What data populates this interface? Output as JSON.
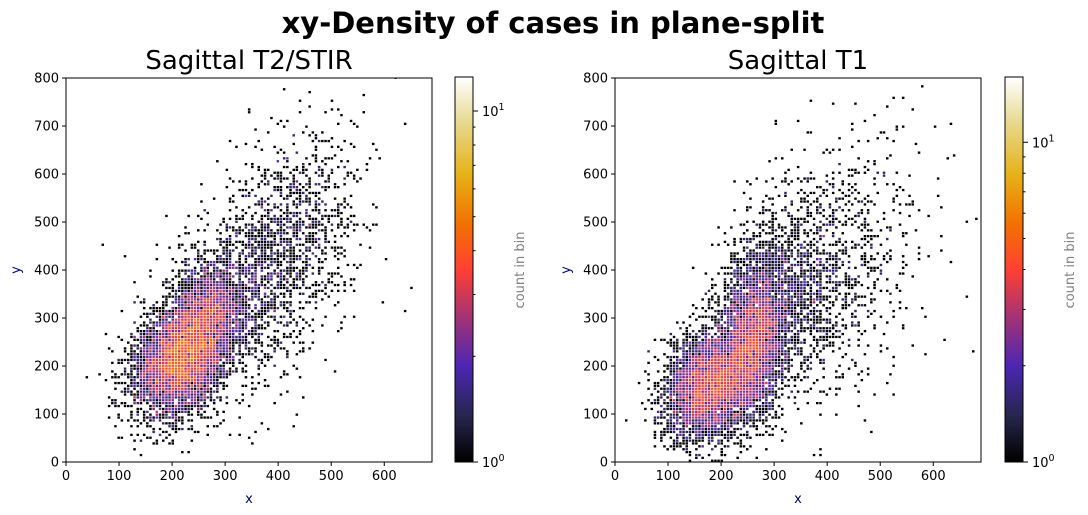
{
  "figure": {
    "suptitle": "xy-Density of cases in plane-split"
  },
  "colors": {
    "axis_label": "#00008b",
    "colorbar_label": "#808080",
    "colormap": "CMRmap"
  },
  "chart_data": [
    {
      "type": "heatmap",
      "subtype": "hexbin",
      "title": "Sagittal T2/STIR",
      "xlabel": "x",
      "ylabel": "y",
      "xlim": [
        0,
        690
      ],
      "ylim": [
        0,
        800
      ],
      "xticks": [
        0,
        100,
        200,
        300,
        400,
        500,
        600
      ],
      "yticks": [
        0,
        100,
        200,
        300,
        400,
        500,
        600,
        700,
        800
      ],
      "colorbar": {
        "label": "count in bin",
        "scale": "log",
        "range": [
          1,
          12.5
        ],
        "tick_labels": [
          "10^0",
          "10^1"
        ]
      },
      "clusters": [
        {
          "cx": 215,
          "cy": 210,
          "sx": 45,
          "sy": 55,
          "n": 4200,
          "peak": 6
        },
        {
          "cx": 265,
          "cy": 310,
          "sx": 38,
          "sy": 55,
          "n": 1800,
          "peak": 5
        },
        {
          "cx": 360,
          "cy": 370,
          "sx": 70,
          "sy": 110,
          "n": 1200,
          "peak": 1.5
        },
        {
          "cx": 440,
          "cy": 500,
          "sx": 65,
          "sy": 95,
          "n": 650,
          "peak": 1.2
        }
      ],
      "outliers": [
        [
          40,
          178
        ],
        [
          70,
          455
        ],
        [
          620,
          800
        ],
        [
          640,
          705
        ],
        [
          650,
          365
        ],
        [
          640,
          312
        ],
        [
          690,
          240
        ],
        [
          560,
          765
        ],
        [
          500,
          755
        ],
        [
          540,
          355
        ]
      ]
    },
    {
      "type": "heatmap",
      "subtype": "hexbin",
      "title": "Sagittal T1",
      "xlabel": "x",
      "ylabel": "y",
      "xlim": [
        0,
        690
      ],
      "ylim": [
        0,
        800
      ],
      "xticks": [
        0,
        100,
        200,
        300,
        400,
        500,
        600
      ],
      "yticks": [
        0,
        100,
        200,
        300,
        400,
        500,
        600,
        700,
        800
      ],
      "colorbar": {
        "label": "count in bin",
        "scale": "log",
        "range": [
          1,
          16
        ],
        "tick_labels": [
          "10^0",
          "10^1"
        ]
      },
      "clusters": [
        {
          "cx": 175,
          "cy": 160,
          "sx": 40,
          "sy": 55,
          "n": 3800,
          "peak": 8
        },
        {
          "cx": 260,
          "cy": 250,
          "sx": 30,
          "sy": 80,
          "n": 3200,
          "peak": 12
        },
        {
          "cx": 320,
          "cy": 350,
          "sx": 60,
          "sy": 95,
          "n": 1400,
          "peak": 1.8
        },
        {
          "cx": 420,
          "cy": 400,
          "sx": 80,
          "sy": 130,
          "n": 700,
          "peak": 1.2
        }
      ],
      "outliers": [
        [
          520,
          640
        ],
        [
          545,
          760
        ],
        [
          580,
          780
        ],
        [
          630,
          705
        ],
        [
          675,
          230
        ],
        [
          690,
          228
        ],
        [
          660,
          345
        ],
        [
          615,
          470
        ],
        [
          560,
          240
        ]
      ]
    }
  ]
}
